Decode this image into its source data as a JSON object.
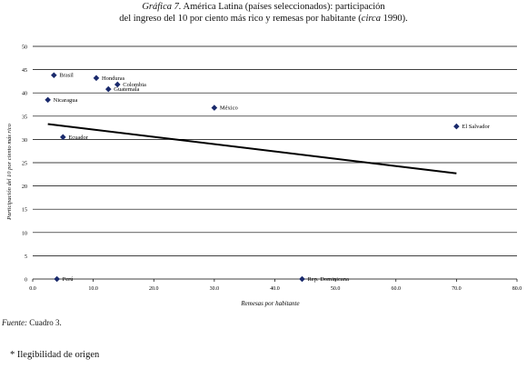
{
  "title": {
    "line1_prefix": "Gráfica 7.",
    "line1_rest": " América Latina (países seleccionados): participación",
    "line2_main": "del ingreso del 10 por ciento más rico y remesas por habitante (",
    "line2_circa": "circa",
    "line2_end": " 1990)."
  },
  "source": {
    "label": "Fuente:",
    "text": " Cuadro 3."
  },
  "note": "* Ilegibilidad de origen",
  "colors": {
    "point": "#1a2a6c",
    "trend": "#000000",
    "grid": "#000000"
  },
  "chart_data": {
    "type": "scatter",
    "xlabel": "Remesas por habitante",
    "ylabel": "Participación del 10 por ciento más rico",
    "xlim": [
      0,
      80
    ],
    "ylim": [
      0,
      50
    ],
    "xticks": [
      "0.0",
      "10.0",
      "20.0",
      "30.0",
      "40.0",
      "50.0",
      "60.0",
      "70.0",
      "80.0"
    ],
    "yticks": [
      "0",
      "5",
      "10",
      "15",
      "20",
      "25",
      "30",
      "35",
      "40",
      "45",
      "50"
    ],
    "grid": "horizontal",
    "points": [
      {
        "label": "Brasil",
        "x": 3.5,
        "y": 43.8
      },
      {
        "label": "Honduras",
        "x": 10.5,
        "y": 43.2
      },
      {
        "label": "Colombia",
        "x": 14.0,
        "y": 41.8
      },
      {
        "label": "Guatemala",
        "x": 12.5,
        "y": 40.8
      },
      {
        "label": "Nicaragua",
        "x": 2.5,
        "y": 38.5
      },
      {
        "label": "México",
        "x": 30.0,
        "y": 36.8
      },
      {
        "label": "El Salvador",
        "x": 70.0,
        "y": 32.8
      },
      {
        "label": "Ecuador",
        "x": 5.0,
        "y": 30.5
      },
      {
        "label": "Perú",
        "x": 4.0,
        "y": 0.0
      },
      {
        "label": "Rep. Dominicana",
        "x": 44.5,
        "y": 0.0
      }
    ],
    "trendline": {
      "x": [
        2.5,
        70.0
      ],
      "y": [
        33.3,
        22.7
      ]
    }
  }
}
